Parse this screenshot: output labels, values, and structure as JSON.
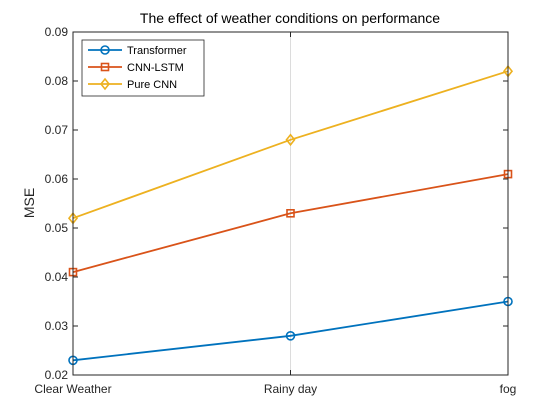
{
  "chart_data": {
    "type": "line",
    "title": "The effect of weather conditions on performance",
    "xlabel": "",
    "ylabel": "MSE",
    "categories": [
      "Clear Weather",
      "Rainy day",
      "fog"
    ],
    "ylim": [
      0.02,
      0.09
    ],
    "yticks": [
      "0.02",
      "0.03",
      "0.04",
      "0.05",
      "0.06",
      "0.07",
      "0.08",
      "0.09"
    ],
    "grid": "x-only",
    "legend_position": "top-left",
    "series": [
      {
        "name": "Transformer",
        "values": [
          0.023,
          0.028,
          0.035
        ],
        "color": "#0072BD",
        "marker": "circle"
      },
      {
        "name": "CNN-LSTM",
        "values": [
          0.041,
          0.053,
          0.061
        ],
        "color": "#D95319",
        "marker": "square"
      },
      {
        "name": "Pure CNN",
        "values": [
          0.052,
          0.068,
          0.082
        ],
        "color": "#EDB120",
        "marker": "diamond"
      }
    ]
  }
}
